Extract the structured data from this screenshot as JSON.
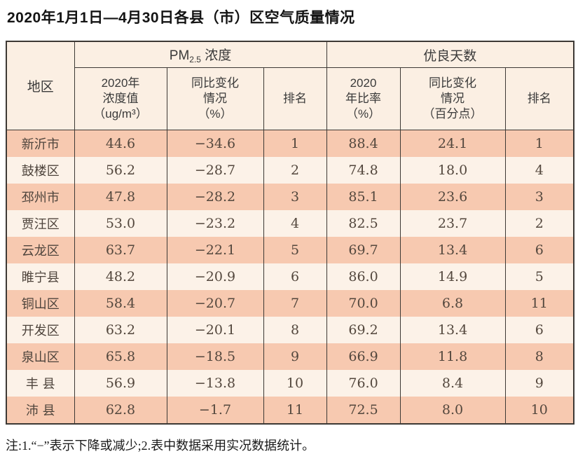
{
  "title": "2020年1月1日—4月30日各县（市）区空气质量情况",
  "note": "注:1.“−”表示下降或减少;2.表中数据采用实况数据统计。",
  "colors": {
    "row_stripe_salmon": "#f7c9b0",
    "row_stripe_cream": "#fcf2e8",
    "header_bg": "#fbefe3",
    "grid_border": "#3d3935",
    "body_text": "#53473d",
    "title_text": "#141414"
  },
  "table": {
    "region_header": "地区",
    "pm25_group": {
      "prefix": "PM",
      "sub": "2.5",
      "suffix": " 浓度"
    },
    "good_days_group": "优良天数",
    "sub_headers": {
      "pm_value": "2020年\n浓度值\n（ug/m³）",
      "pm_change": "同比变化\n情况\n（%）",
      "pm_rank": "排名",
      "days_rate": "2020\n年比率\n（%）",
      "days_change": "同比变化\n情况\n（百分点）",
      "days_rank": "排名"
    },
    "rows": [
      {
        "region": "新沂市",
        "pm_value": "44.6",
        "pm_change": "−34.6",
        "pm_rank": "1",
        "days_rate": "88.4",
        "days_change": "24.1",
        "days_rank": "1"
      },
      {
        "region": "鼓楼区",
        "pm_value": "56.2",
        "pm_change": "−28.7",
        "pm_rank": "2",
        "days_rate": "74.8",
        "days_change": "18.0",
        "days_rank": "4"
      },
      {
        "region": "邳州市",
        "pm_value": "47.8",
        "pm_change": "−28.2",
        "pm_rank": "3",
        "days_rate": "85.1",
        "days_change": "23.6",
        "days_rank": "3"
      },
      {
        "region": "贾汪区",
        "pm_value": "53.0",
        "pm_change": "−23.2",
        "pm_rank": "4",
        "days_rate": "82.5",
        "days_change": "23.7",
        "days_rank": "2"
      },
      {
        "region": "云龙区",
        "pm_value": "63.7",
        "pm_change": "−22.1",
        "pm_rank": "5",
        "days_rate": "69.7",
        "days_change": "13.4",
        "days_rank": "6"
      },
      {
        "region": "睢宁县",
        "pm_value": "48.2",
        "pm_change": "−20.9",
        "pm_rank": "6",
        "days_rate": "86.0",
        "days_change": "14.9",
        "days_rank": "5"
      },
      {
        "region": "铜山区",
        "pm_value": "58.4",
        "pm_change": "−20.7",
        "pm_rank": "7",
        "days_rate": "70.0",
        "days_change": "6.8",
        "days_rank": "11"
      },
      {
        "region": "开发区",
        "pm_value": "63.2",
        "pm_change": "−20.1",
        "pm_rank": "8",
        "days_rate": "69.2",
        "days_change": "13.4",
        "days_rank": "6"
      },
      {
        "region": "泉山区",
        "pm_value": "65.8",
        "pm_change": "−18.5",
        "pm_rank": "9",
        "days_rate": "66.9",
        "days_change": "11.8",
        "days_rank": "8"
      },
      {
        "region": "丰 县",
        "pm_value": "56.9",
        "pm_change": "−13.8",
        "pm_rank": "10",
        "days_rate": "76.0",
        "days_change": "8.4",
        "days_rank": "9"
      },
      {
        "region": "沛 县",
        "pm_value": "62.8",
        "pm_change": "−1.7",
        "pm_rank": "11",
        "days_rate": "72.5",
        "days_change": "8.0",
        "days_rank": "10"
      }
    ]
  }
}
